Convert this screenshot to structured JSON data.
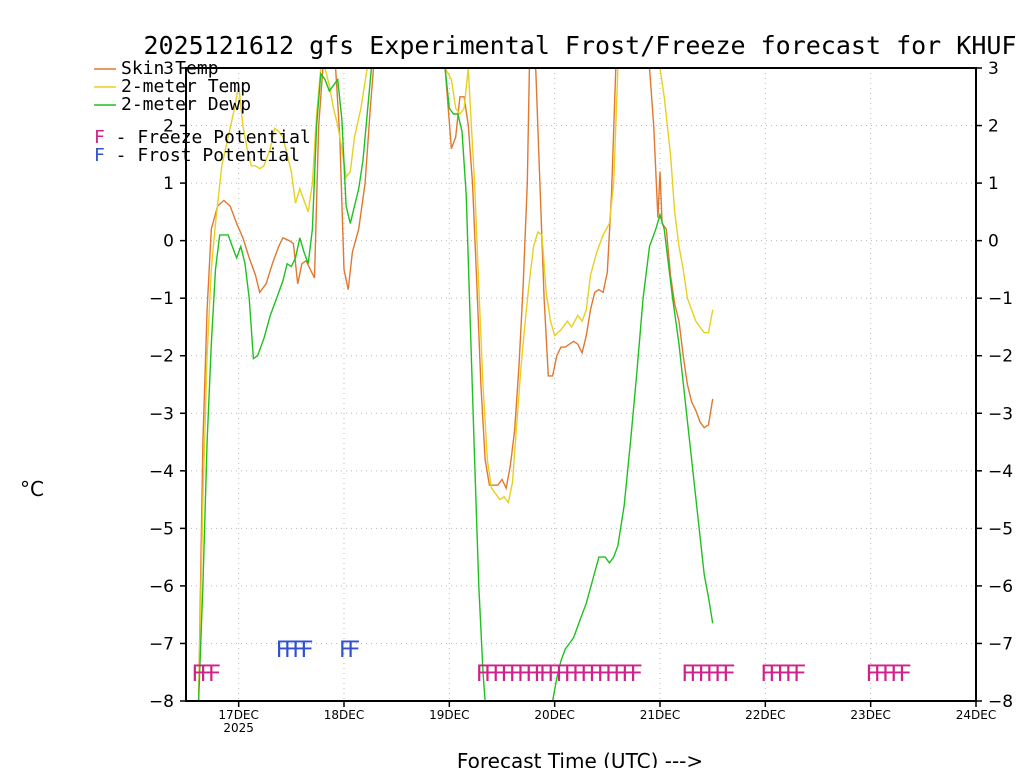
{
  "chart_data": {
    "type": "line",
    "title": "2025121612 gfs Experimental Frost/Freeze forecast for KHUF",
    "ylabel": "°C",
    "xlabel": "Forecast Time (UTC) --->",
    "ylim": [
      -8,
      3
    ],
    "xlim": [
      16.5,
      24
    ],
    "yticks": [
      -8,
      -7,
      -6,
      -5,
      -4,
      -3,
      -2,
      -1,
      0,
      1,
      2,
      3
    ],
    "xticks": [
      {
        "x": 17,
        "label": "17DEC",
        "sub": "2025"
      },
      {
        "x": 18,
        "label": "18DEC",
        "sub": ""
      },
      {
        "x": 19,
        "label": "19DEC",
        "sub": ""
      },
      {
        "x": 20,
        "label": "20DEC",
        "sub": ""
      },
      {
        "x": 21,
        "label": "21DEC",
        "sub": ""
      },
      {
        "x": 22,
        "label": "22DEC",
        "sub": ""
      },
      {
        "x": 23,
        "label": "23DEC",
        "sub": ""
      },
      {
        "x": 24,
        "label": "24DEC",
        "sub": ""
      }
    ],
    "legend": [
      {
        "label": "Skin Temp",
        "color": "#e07830"
      },
      {
        "label": "2-meter Temp",
        "color": "#e8d020"
      },
      {
        "label": "2-meter Dewp",
        "color": "#20c020"
      }
    ],
    "potential_legend": [
      {
        "symbol": "F",
        "text": " - Freeze Potential",
        "color": "#d0208c"
      },
      {
        "symbol": "F",
        "text": " - Frost Potential",
        "color": "#3050d0"
      }
    ],
    "series": [
      {
        "name": "Skin Temp",
        "color": "#e07830",
        "points": [
          [
            16.62,
            -8
          ],
          [
            16.66,
            -3.5
          ],
          [
            16.7,
            -1.2
          ],
          [
            16.74,
            0.2
          ],
          [
            16.8,
            0.6
          ],
          [
            16.86,
            0.7
          ],
          [
            16.92,
            0.6
          ],
          [
            16.98,
            0.3
          ],
          [
            17.04,
            0.05
          ],
          [
            17.1,
            -0.3
          ],
          [
            17.16,
            -0.6
          ],
          [
            17.2,
            -0.9
          ],
          [
            17.26,
            -0.75
          ],
          [
            17.32,
            -0.4
          ],
          [
            17.38,
            -0.1
          ],
          [
            17.42,
            0.05
          ],
          [
            17.48,
            0
          ],
          [
            17.52,
            -0.05
          ],
          [
            17.56,
            -0.75
          ],
          [
            17.6,
            -0.4
          ],
          [
            17.64,
            -0.35
          ],
          [
            17.68,
            -0.5
          ],
          [
            17.72,
            -0.65
          ],
          [
            17.76,
            2.0
          ],
          [
            17.8,
            3.0
          ],
          [
            17.84,
            3.0
          ],
          [
            17.88,
            3.0
          ],
          [
            17.92,
            3.0
          ],
          [
            17.96,
            1.8
          ],
          [
            18.0,
            -0.5
          ],
          [
            18.04,
            -0.85
          ],
          [
            18.08,
            -0.2
          ],
          [
            18.14,
            0.2
          ],
          [
            18.2,
            1.0
          ],
          [
            18.25,
            2.3
          ],
          [
            18.28,
            3.0
          ],
          [
            18.96,
            3.0
          ],
          [
            19.02,
            1.6
          ],
          [
            19.06,
            1.8
          ],
          [
            19.1,
            2.5
          ],
          [
            19.14,
            2.5
          ],
          [
            19.18,
            2.0
          ],
          [
            19.22,
            1.0
          ],
          [
            19.26,
            -0.7
          ],
          [
            19.3,
            -2.5
          ],
          [
            19.34,
            -3.8
          ],
          [
            19.38,
            -4.25
          ],
          [
            19.42,
            -4.25
          ],
          [
            19.46,
            -4.25
          ],
          [
            19.5,
            -4.15
          ],
          [
            19.54,
            -4.3
          ],
          [
            19.58,
            -3.9
          ],
          [
            19.62,
            -3.3
          ],
          [
            19.66,
            -2.2
          ],
          [
            19.7,
            -0.8
          ],
          [
            19.74,
            1.0
          ],
          [
            19.76,
            3.0
          ],
          [
            19.82,
            3.0
          ],
          [
            19.86,
            1.0
          ],
          [
            19.9,
            -1.0
          ],
          [
            19.94,
            -2.35
          ],
          [
            19.98,
            -2.35
          ],
          [
            20.02,
            -2.0
          ],
          [
            20.06,
            -1.85
          ],
          [
            20.1,
            -1.85
          ],
          [
            20.14,
            -1.8
          ],
          [
            20.18,
            -1.75
          ],
          [
            20.22,
            -1.8
          ],
          [
            20.26,
            -1.95
          ],
          [
            20.3,
            -1.65
          ],
          [
            20.34,
            -1.2
          ],
          [
            20.38,
            -0.9
          ],
          [
            20.42,
            -0.85
          ],
          [
            20.46,
            -0.9
          ],
          [
            20.5,
            -0.55
          ],
          [
            20.54,
            0.8
          ],
          [
            20.58,
            3.0
          ],
          [
            20.9,
            3.0
          ],
          [
            20.94,
            2.0
          ],
          [
            20.98,
            0.4
          ],
          [
            21.0,
            1.2
          ],
          [
            21.02,
            0.3
          ],
          [
            21.06,
            0.2
          ],
          [
            21.1,
            -0.6
          ],
          [
            21.14,
            -1.1
          ],
          [
            21.18,
            -1.4
          ],
          [
            21.22,
            -2.0
          ],
          [
            21.26,
            -2.5
          ],
          [
            21.3,
            -2.8
          ],
          [
            21.34,
            -2.95
          ],
          [
            21.38,
            -3.15
          ],
          [
            21.42,
            -3.25
          ],
          [
            21.46,
            -3.2
          ],
          [
            21.5,
            -2.75
          ]
        ]
      },
      {
        "name": "2-meter Temp",
        "color": "#e8d020",
        "points": [
          [
            16.62,
            -8
          ],
          [
            16.66,
            -4.5
          ],
          [
            16.7,
            -2.0
          ],
          [
            16.74,
            -0.5
          ],
          [
            16.78,
            0.3
          ],
          [
            16.84,
            1.3
          ],
          [
            16.9,
            1.8
          ],
          [
            16.96,
            2.3
          ],
          [
            17.0,
            2.7
          ],
          [
            17.04,
            2.0
          ],
          [
            17.08,
            1.6
          ],
          [
            17.12,
            1.3
          ],
          [
            17.16,
            1.3
          ],
          [
            17.2,
            1.25
          ],
          [
            17.24,
            1.3
          ],
          [
            17.3,
            1.6
          ],
          [
            17.34,
            1.95
          ],
          [
            17.38,
            1.9
          ],
          [
            17.42,
            1.8
          ],
          [
            17.46,
            1.5
          ],
          [
            17.5,
            1.2
          ],
          [
            17.54,
            0.65
          ],
          [
            17.58,
            0.9
          ],
          [
            17.62,
            0.7
          ],
          [
            17.66,
            0.5
          ],
          [
            17.7,
            1.0
          ],
          [
            17.74,
            2.2
          ],
          [
            17.78,
            3.0
          ],
          [
            17.82,
            3.0
          ],
          [
            17.86,
            2.7
          ],
          [
            17.9,
            2.3
          ],
          [
            17.94,
            2.0
          ],
          [
            17.98,
            1.6
          ],
          [
            18.02,
            1.1
          ],
          [
            18.06,
            1.2
          ],
          [
            18.1,
            1.8
          ],
          [
            18.16,
            2.3
          ],
          [
            18.22,
            3.0
          ],
          [
            18.96,
            3.0
          ],
          [
            19.02,
            2.8
          ],
          [
            19.06,
            2.3
          ],
          [
            19.1,
            2.2
          ],
          [
            19.14,
            2.3
          ],
          [
            19.18,
            3.0
          ],
          [
            19.2,
            2.3
          ],
          [
            19.24,
            1.0
          ],
          [
            19.28,
            -0.8
          ],
          [
            19.32,
            -2.5
          ],
          [
            19.36,
            -3.8
          ],
          [
            19.4,
            -4.3
          ],
          [
            19.44,
            -4.4
          ],
          [
            19.48,
            -4.5
          ],
          [
            19.52,
            -4.45
          ],
          [
            19.56,
            -4.55
          ],
          [
            19.6,
            -4.2
          ],
          [
            19.64,
            -3.2
          ],
          [
            19.68,
            -2.2
          ],
          [
            19.72,
            -1.4
          ],
          [
            19.76,
            -0.7
          ],
          [
            19.8,
            -0.1
          ],
          [
            19.84,
            0.15
          ],
          [
            19.88,
            0.1
          ],
          [
            19.92,
            -0.9
          ],
          [
            19.96,
            -1.4
          ],
          [
            20.0,
            -1.65
          ],
          [
            20.06,
            -1.55
          ],
          [
            20.12,
            -1.4
          ],
          [
            20.16,
            -1.5
          ],
          [
            20.22,
            -1.3
          ],
          [
            20.26,
            -1.4
          ],
          [
            20.3,
            -1.2
          ],
          [
            20.34,
            -0.6
          ],
          [
            20.4,
            -0.2
          ],
          [
            20.46,
            0.1
          ],
          [
            20.52,
            0.3
          ],
          [
            20.56,
            1.0
          ],
          [
            20.6,
            3.0
          ],
          [
            21.0,
            3.0
          ],
          [
            21.04,
            2.5
          ],
          [
            21.1,
            1.5
          ],
          [
            21.14,
            0.5
          ],
          [
            21.18,
            -0.1
          ],
          [
            21.22,
            -0.5
          ],
          [
            21.26,
            -1.0
          ],
          [
            21.3,
            -1.2
          ],
          [
            21.34,
            -1.4
          ],
          [
            21.38,
            -1.5
          ],
          [
            21.42,
            -1.6
          ],
          [
            21.46,
            -1.6
          ],
          [
            21.5,
            -1.2
          ]
        ]
      },
      {
        "name": "2-meter Dewp",
        "color": "#20c020",
        "points": [
          [
            16.62,
            -8
          ],
          [
            16.66,
            -6.0
          ],
          [
            16.7,
            -3.5
          ],
          [
            16.74,
            -1.8
          ],
          [
            16.78,
            -0.5
          ],
          [
            16.82,
            0.1
          ],
          [
            16.86,
            0.1
          ],
          [
            16.9,
            0.1
          ],
          [
            16.94,
            -0.1
          ],
          [
            16.98,
            -0.3
          ],
          [
            17.02,
            -0.1
          ],
          [
            17.06,
            -0.4
          ],
          [
            17.1,
            -1.0
          ],
          [
            17.14,
            -2.05
          ],
          [
            17.18,
            -2.0
          ],
          [
            17.24,
            -1.7
          ],
          [
            17.3,
            -1.3
          ],
          [
            17.36,
            -1.0
          ],
          [
            17.42,
            -0.7
          ],
          [
            17.46,
            -0.4
          ],
          [
            17.5,
            -0.45
          ],
          [
            17.54,
            -0.3
          ],
          [
            17.58,
            0.05
          ],
          [
            17.62,
            -0.2
          ],
          [
            17.66,
            -0.4
          ],
          [
            17.7,
            0.2
          ],
          [
            17.74,
            2.0
          ],
          [
            17.78,
            2.9
          ],
          [
            17.82,
            2.8
          ],
          [
            17.86,
            2.6
          ],
          [
            17.9,
            2.7
          ],
          [
            17.94,
            2.8
          ],
          [
            17.98,
            2.1
          ],
          [
            18.02,
            0.6
          ],
          [
            18.06,
            0.3
          ],
          [
            18.1,
            0.6
          ],
          [
            18.14,
            0.9
          ],
          [
            18.18,
            1.4
          ],
          [
            18.22,
            2.2
          ],
          [
            18.26,
            3.0
          ],
          [
            18.96,
            3.0
          ],
          [
            19.0,
            2.3
          ],
          [
            19.04,
            2.2
          ],
          [
            19.08,
            2.2
          ],
          [
            19.12,
            1.9
          ],
          [
            19.16,
            0.8
          ],
          [
            19.2,
            -1.5
          ],
          [
            19.24,
            -3.8
          ],
          [
            19.28,
            -6.0
          ],
          [
            19.32,
            -7.5
          ],
          [
            19.34,
            -8.0
          ],
          [
            19.98,
            -8.0
          ],
          [
            20.02,
            -7.6
          ],
          [
            20.06,
            -7.3
          ],
          [
            20.1,
            -7.1
          ],
          [
            20.14,
            -7.0
          ],
          [
            20.18,
            -6.9
          ],
          [
            20.24,
            -6.6
          ],
          [
            20.3,
            -6.3
          ],
          [
            20.36,
            -5.9
          ],
          [
            20.42,
            -5.5
          ],
          [
            20.48,
            -5.5
          ],
          [
            20.52,
            -5.6
          ],
          [
            20.56,
            -5.5
          ],
          [
            20.6,
            -5.3
          ],
          [
            20.66,
            -4.6
          ],
          [
            20.72,
            -3.5
          ],
          [
            20.78,
            -2.3
          ],
          [
            20.84,
            -1.0
          ],
          [
            20.9,
            -0.1
          ],
          [
            20.96,
            0.2
          ],
          [
            21.0,
            0.45
          ],
          [
            21.04,
            0.2
          ],
          [
            21.08,
            -0.4
          ],
          [
            21.12,
            -1.0
          ],
          [
            21.18,
            -1.8
          ],
          [
            21.24,
            -2.8
          ],
          [
            21.3,
            -3.8
          ],
          [
            21.36,
            -4.8
          ],
          [
            21.42,
            -5.8
          ],
          [
            21.46,
            -6.2
          ],
          [
            21.5,
            -6.65
          ]
        ]
      }
    ],
    "markers": [
      {
        "x": 16.55,
        "row": "freeze",
        "text": "FFF",
        "color": "#d0208c"
      },
      {
        "x": 17.35,
        "row": "frost",
        "text": "FFFF",
        "color": "#3050d0"
      },
      {
        "x": 17.95,
        "row": "frost",
        "text": "FF",
        "color": "#3050d0"
      },
      {
        "x": 19.25,
        "row": "freeze",
        "text": "FFFFFFFF",
        "color": "#d0208c"
      },
      {
        "x": 19.85,
        "row": "freeze",
        "text": "FFFFFFFFFFFF",
        "color": "#d0208c"
      },
      {
        "x": 21.2,
        "row": "freeze",
        "text": "FFFFFF",
        "color": "#d0208c"
      },
      {
        "x": 21.95,
        "row": "freeze",
        "text": "FFFFF",
        "color": "#d0208c"
      },
      {
        "x": 22.95,
        "row": "freeze",
        "text": "FFFFF",
        "color": "#d0208c"
      }
    ]
  }
}
